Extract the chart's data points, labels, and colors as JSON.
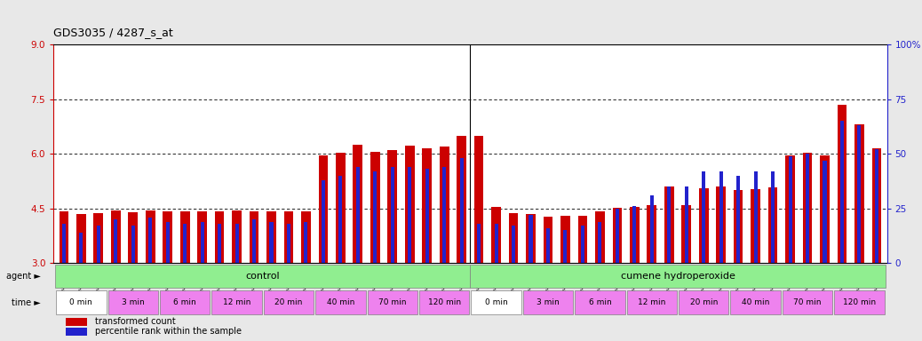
{
  "title": "GDS3035 / 4287_s_at",
  "sample_ids": [
    "GSM184944",
    "GSM184952",
    "GSM184960",
    "GSM184945",
    "GSM184953",
    "GSM184961",
    "GSM184946",
    "GSM184954",
    "GSM184962",
    "GSM184947",
    "GSM184955",
    "GSM184963",
    "GSM184948",
    "GSM184956",
    "GSM184964",
    "GSM184949",
    "GSM184957",
    "GSM184965",
    "GSM184950",
    "GSM184958",
    "GSM184966",
    "GSM184951",
    "GSM184959",
    "GSM184967",
    "GSM184968",
    "GSM184976",
    "GSM184984",
    "GSM184969",
    "GSM184977",
    "GSM184985",
    "GSM184970",
    "GSM184978",
    "GSM184986",
    "GSM184971",
    "GSM184979",
    "GSM184987",
    "GSM184972",
    "GSM184980",
    "GSM184988",
    "GSM184973",
    "GSM184981",
    "GSM184989",
    "GSM184974",
    "GSM184982",
    "GSM184990",
    "GSM184975",
    "GSM184983",
    "GSM184991"
  ],
  "red_values": [
    4.42,
    4.35,
    4.38,
    4.45,
    4.4,
    4.45,
    4.42,
    4.42,
    4.43,
    4.42,
    4.44,
    4.43,
    4.42,
    4.43,
    4.42,
    5.95,
    6.02,
    6.25,
    6.05,
    6.1,
    6.22,
    6.15,
    6.2,
    6.5,
    6.5,
    4.55,
    4.38,
    4.35,
    4.28,
    4.3,
    4.3,
    4.42,
    4.52,
    4.55,
    4.58,
    5.1,
    4.6,
    5.05,
    5.1,
    5.0,
    5.02,
    5.08,
    5.95,
    6.02,
    5.95,
    7.35,
    6.8,
    6.15
  ],
  "blue_values": [
    18,
    14,
    17,
    20,
    17,
    21,
    19,
    18,
    19,
    18,
    18,
    20,
    19,
    18,
    19,
    38,
    40,
    44,
    42,
    44,
    44,
    43,
    44,
    48,
    18,
    18,
    17,
    22,
    16,
    15,
    17,
    19,
    25,
    26,
    31,
    35,
    35,
    42,
    42,
    40,
    42,
    42,
    49,
    50,
    47,
    65,
    63,
    52
  ],
  "ylim_left": [
    3,
    9
  ],
  "ylim_right": [
    0,
    100
  ],
  "yticks_left": [
    3,
    4.5,
    6,
    7.5,
    9
  ],
  "yticks_right": [
    0,
    25,
    50,
    75,
    100
  ],
  "bar_color": "#cc0000",
  "blue_color": "#2222cc",
  "background_color": "#e8e8e8",
  "plot_bg": "#ffffff",
  "legend_red": "transformed count",
  "legend_blue": "percentile rank within the sample",
  "time_colors": {
    "0 min": "#ffffff",
    "other": "#ee82ee"
  },
  "time_groups": [
    {
      "label": "0 min",
      "indices": [
        0,
        1,
        2
      ]
    },
    {
      "label": "3 min",
      "indices": [
        3,
        4,
        5
      ]
    },
    {
      "label": "6 min",
      "indices": [
        6,
        7,
        8
      ]
    },
    {
      "label": "12 min",
      "indices": [
        9,
        10,
        11
      ]
    },
    {
      "label": "20 min",
      "indices": [
        12,
        13,
        14
      ]
    },
    {
      "label": "40 min",
      "indices": [
        15,
        16,
        17
      ]
    },
    {
      "label": "70 min",
      "indices": [
        18,
        19,
        20
      ]
    },
    {
      "label": "120 min",
      "indices": [
        21,
        22,
        23
      ]
    },
    {
      "label": "0 min",
      "indices": [
        24,
        25,
        26
      ]
    },
    {
      "label": "3 min",
      "indices": [
        27,
        28,
        29
      ]
    },
    {
      "label": "6 min",
      "indices": [
        30,
        31,
        32
      ]
    },
    {
      "label": "12 min",
      "indices": [
        33,
        34,
        35
      ]
    },
    {
      "label": "20 min",
      "indices": [
        36,
        37,
        38
      ]
    },
    {
      "label": "40 min",
      "indices": [
        39,
        40,
        41
      ]
    },
    {
      "label": "70 min",
      "indices": [
        42,
        43,
        44
      ]
    },
    {
      "label": "120 min",
      "indices": [
        45,
        46,
        47
      ]
    }
  ]
}
